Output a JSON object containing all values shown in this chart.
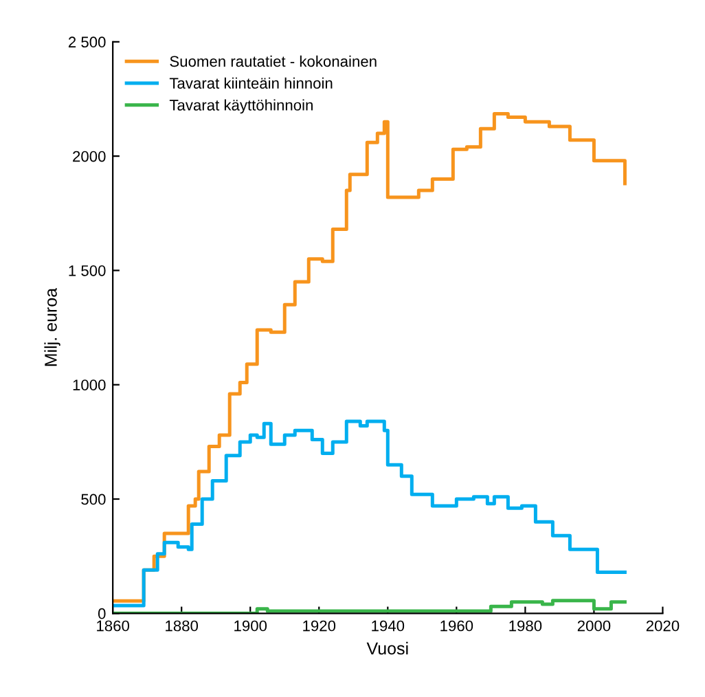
{
  "chart_data": {
    "type": "step",
    "xlabel": "Vuosi",
    "ylabel": "Milj. euroa",
    "xlim": [
      1860,
      2020
    ],
    "xticks": [
      1860,
      1880,
      1900,
      1920,
      1940,
      1960,
      1980,
      2000,
      2020
    ],
    "ylim": [
      0,
      2500
    ],
    "yticks": [
      0,
      500,
      {
        "value": 1000,
        "label": "1000"
      },
      {
        "value": 1500,
        "label": "1 500"
      },
      2000,
      {
        "value": 2500,
        "label": "2 500"
      }
    ],
    "legend": "top left",
    "grid": false,
    "series": [
      {
        "name": "Suomen rautatiet - kokonainen",
        "color": "#f7941d",
        "x": [
          1860,
          1867,
          1869,
          1872,
          1875,
          1881,
          1882,
          1884,
          1885,
          1888,
          1891,
          1894,
          1897,
          1899,
          1902,
          1906,
          1910,
          1913,
          1917,
          1921,
          1924,
          1928,
          1929,
          1934,
          1937,
          1939,
          1940,
          1949,
          1953,
          1959,
          1963,
          1967,
          1971,
          1975,
          1980,
          1987,
          1993,
          2000,
          2009
        ],
        "values": [
          54,
          54,
          190,
          250,
          350,
          350,
          470,
          500,
          620,
          730,
          780,
          960,
          1010,
          1090,
          1240,
          1230,
          1350,
          1450,
          1550,
          1540,
          1680,
          1850,
          1920,
          2060,
          2100,
          2150,
          1820,
          1850,
          1900,
          2030,
          2040,
          2120,
          2185,
          2170,
          2150,
          2130,
          2070,
          1980,
          1880
        ]
      },
      {
        "name": "Tavarat kiinteäin hinnoin",
        "color": "#00aeef",
        "x": [
          1860,
          1868,
          1869,
          1873,
          1875,
          1879,
          1882,
          1883,
          1886,
          1889,
          1893,
          1897,
          1900,
          1902,
          1904,
          1906,
          1910,
          1913,
          1918,
          1921,
          1924,
          1928,
          1932,
          1934,
          1939,
          1940,
          1944,
          1947,
          1953,
          1960,
          1965,
          1969,
          1971,
          1975,
          1979,
          1983,
          1988,
          1993,
          2001,
          2005,
          2009
        ],
        "values": [
          34,
          34,
          190,
          260,
          310,
          290,
          280,
          390,
          500,
          580,
          690,
          750,
          780,
          770,
          830,
          740,
          780,
          800,
          760,
          700,
          750,
          840,
          820,
          840,
          800,
          650,
          600,
          520,
          470,
          500,
          510,
          480,
          510,
          460,
          470,
          400,
          340,
          280,
          180,
          180,
          180
        ]
      },
      {
        "name": "Tavarat käyttöhinnoin",
        "color": "#39b54a",
        "x": [
          1860,
          1900,
          1902,
          1905,
          1912,
          1965,
          1970,
          1976,
          1982,
          1985,
          1988,
          2000,
          2005,
          2009
        ],
        "values": [
          0,
          0,
          20,
          10,
          10,
          10,
          30,
          50,
          50,
          40,
          56,
          20,
          50,
          50
        ]
      }
    ]
  }
}
